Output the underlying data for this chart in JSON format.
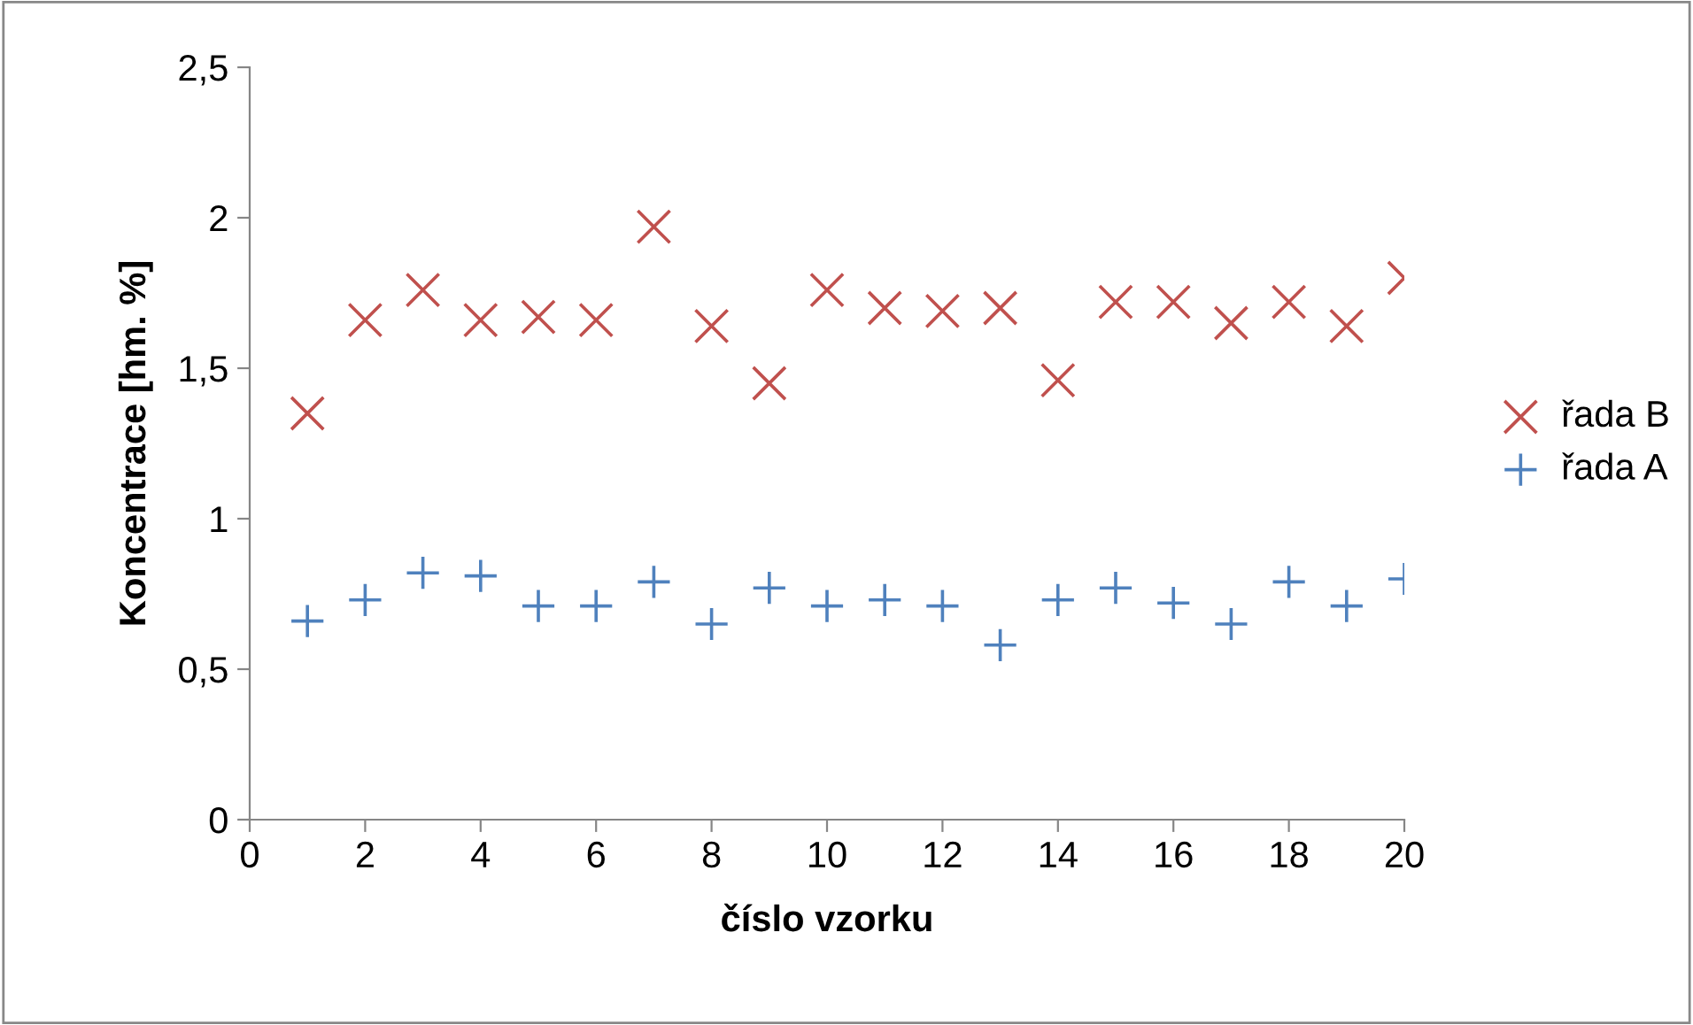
{
  "chart_data": {
    "type": "scatter",
    "xlabel": "číslo vzorku",
    "ylabel": "Koncentrace [hm. %]",
    "xlim": [
      0,
      20
    ],
    "xticks": [
      0,
      2,
      4,
      6,
      8,
      10,
      12,
      14,
      16,
      18,
      20
    ],
    "ylim": [
      0,
      2.5
    ],
    "yticks": [
      0,
      {
        "value": 0.5,
        "label": "0,5"
      },
      1,
      {
        "value": 1.5,
        "label": "1,5"
      },
      2,
      {
        "value": 2.5,
        "label": "2,5"
      }
    ],
    "grid": false,
    "legend": "right",
    "x": [
      1,
      2,
      3,
      4,
      5,
      6,
      7,
      8,
      9,
      10,
      11,
      12,
      13,
      14,
      15,
      16,
      17,
      18,
      19,
      20
    ],
    "series": [
      {
        "name": "řada B",
        "color": "#c0504d",
        "marker": "cross",
        "values": [
          1.35,
          1.66,
          1.76,
          1.66,
          1.67,
          1.66,
          1.97,
          1.64,
          1.45,
          1.76,
          1.7,
          1.69,
          1.7,
          1.46,
          1.72,
          1.72,
          1.65,
          1.72,
          1.64,
          1.8
        ]
      },
      {
        "name": "řada A",
        "color": "#4f81bd",
        "marker": "plus",
        "values": [
          0.66,
          0.73,
          0.82,
          0.81,
          0.71,
          0.71,
          0.79,
          0.65,
          0.77,
          0.71,
          0.73,
          0.71,
          0.58,
          0.73,
          0.77,
          0.72,
          0.65,
          0.79,
          0.71,
          0.8
        ]
      }
    ]
  }
}
